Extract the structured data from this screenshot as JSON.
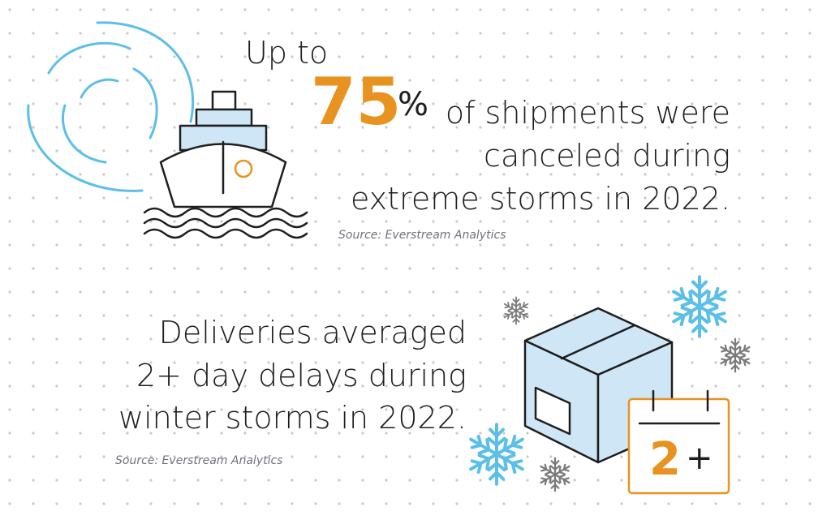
{
  "stat_shipments": {
    "prefix": "Up to",
    "number": "75",
    "unit": "%",
    "lines": [
      "of shipments were",
      "canceled during",
      "extreme storms in 2022."
    ],
    "source": "Source: Everstream Analytics"
  },
  "stat_deliveries": {
    "lines": [
      "Deliveries averaged",
      "2+ day delays during",
      "winter storms in 2022."
    ],
    "source": "Source: Everstream Analytics"
  },
  "calendar": {
    "number": "2",
    "suffix": "+"
  }
}
